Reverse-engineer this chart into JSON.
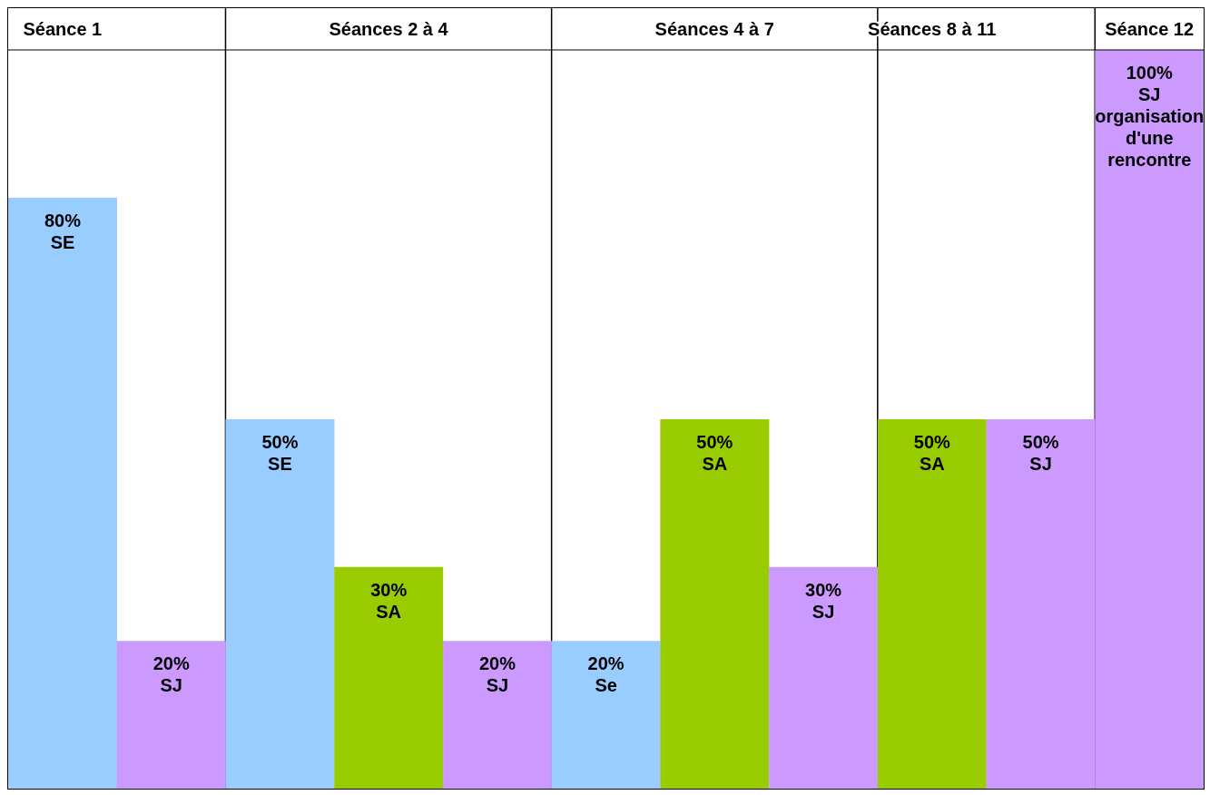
{
  "chart_data": {
    "type": "bar",
    "categories": [
      "Séance 1",
      null,
      null,
      "Séances 2 à 4",
      null,
      null,
      "Séances 4 à 7",
      null,
      "Séances 8 à 11",
      null,
      "Séance 12"
    ],
    "values": [
      80,
      20,
      50,
      30,
      20,
      20,
      50,
      30,
      50,
      50,
      100
    ],
    "colors": [
      "#99ccff",
      "#cc99ff",
      "#99ccff",
      "#99cc00",
      "#cc99ff",
      "#99ccff",
      "#99cc00",
      "#cc99ff",
      "#99cc00",
      "#cc99ff",
      "#cc99ff"
    ],
    "value_labels": [
      "80%\nSE",
      "20%\nSJ",
      "50%\nSE",
      "30%\nSA",
      "20%\nSJ",
      "20%\nSe",
      "50%\nSA",
      "30%\nSJ",
      "50%\nSA",
      "50%\nSJ",
      "100%\nSJ\norganisation\nd'une\nrencontre"
    ],
    "ylim": [
      0,
      100
    ],
    "tick_labels": "x"
  }
}
